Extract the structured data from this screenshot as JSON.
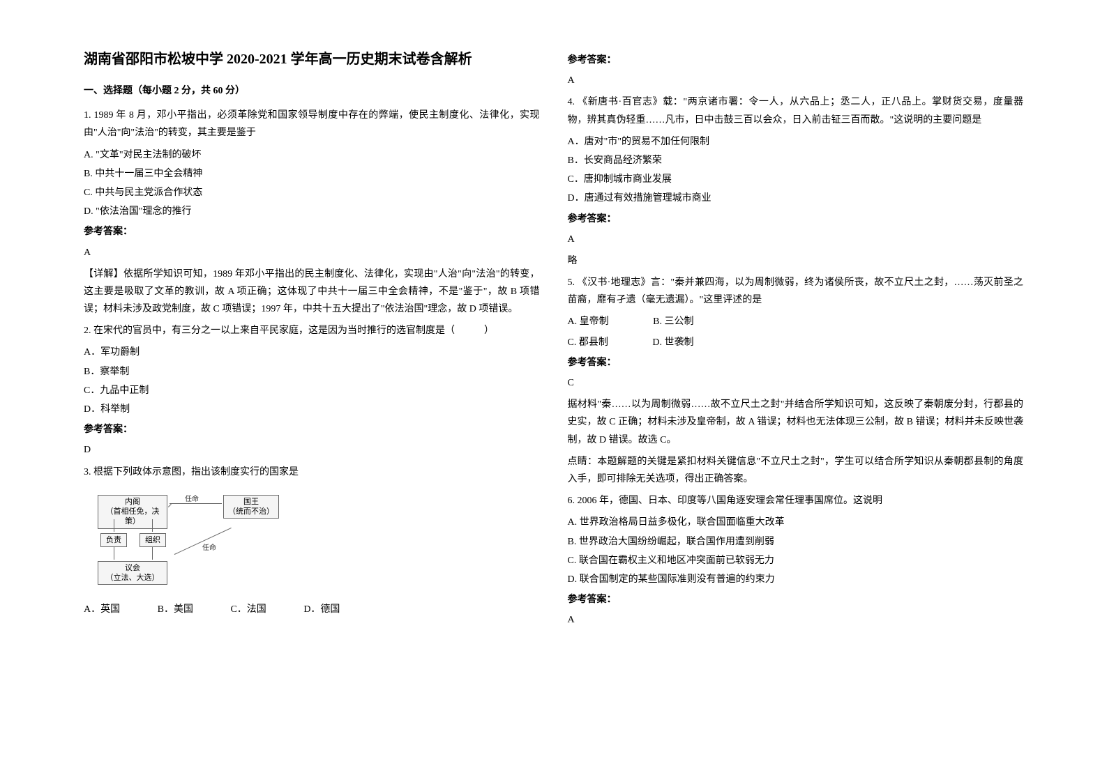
{
  "title": "湖南省邵阳市松坡中学 2020-2021 学年高一历史期末试卷含解析",
  "section1_header": "一、选择题（每小题 2 分，共 60 分）",
  "q1": {
    "stem": "1. 1989 年 8 月，邓小平指出，必须革除党和国家领导制度中存在的弊端，使民主制度化、法律化，实现由\"人治\"向\"法治\"的转变，其主要是鉴于",
    "optA": "A. \"文革\"对民主法制的破坏",
    "optB": "B. 中共十一届三中全会精神",
    "optC": "C. 中共与民主党派合作状态",
    "optD": "D. \"依法治国\"理念的推行",
    "answer_label": "参考答案：",
    "answer": "A",
    "explanation": "【详解】依据所学知识可知，1989 年邓小平指出的民主制度化、法律化，实现由\"人治\"向\"法治\"的转变，这主要是吸取了文革的教训，故 A 项正确；这体现了中共十一届三中全会精神，不是\"鉴于\"，故 B 项错误；材料未涉及政党制度，故 C 项错误；1997 年，中共十五大提出了\"依法治国\"理念，故 D 项错误。"
  },
  "q2": {
    "stem": "2. 在宋代的官员中，有三分之一以上来自平民家庭，这是因为当时推行的选官制度是（　　　）",
    "optA": "A．军功爵制",
    "optB": "B．察举制",
    "optC": "C．九品中正制",
    "optD": "D．科举制",
    "answer_label": "参考答案：",
    "answer": "D"
  },
  "q3": {
    "stem": "3. 根据下列政体示意图，指出该制度实行的国家是",
    "diagram": {
      "box_cabinet": "内阁\n（首相任免，决策）",
      "box_king": "国王\n（统而不治）",
      "box_responsible": "负责",
      "box_organize": "组织",
      "box_parliament": "议会\n（立法、大选）",
      "label_appoint1": "任命",
      "label_appoint2": "任命"
    },
    "optA": "A．英国",
    "optB": "B．美国",
    "optC": "C．法国",
    "optD": "D．德国",
    "answer_label": "参考答案：",
    "answer": "A"
  },
  "q4": {
    "stem": "4. 《新唐书·百官志》载：\"两京诸市署：令一人，从六品上；丞二人，正八品上。掌财货交易，度量器物，辨其真伪轻重……凡市，日中击鼓三百以会众，日入前击钲三百而散。\"这说明的主要问题是",
    "optA": "A．唐对\"市\"的贸易不加任何限制",
    "optB": "B．长安商品经济繁荣",
    "optC": "C．唐抑制城市商业发展",
    "optD": "D．唐通过有效措施管理城市商业",
    "answer_label": "参考答案：",
    "answer": "A",
    "note": "略"
  },
  "q5": {
    "stem": "5. 《汉书·地理志》言：\"秦并兼四海，以为周制微弱，终为诸侯所丧，故不立尺土之封，……荡灭前圣之苗裔，靡有孑遗（毫无遗漏）。\"这里评述的是",
    "optA": "A. 皇帝制",
    "optB": "B. 三公制",
    "optC": "C. 郡县制",
    "optD": "D. 世袭制",
    "answer_label": "参考答案：",
    "answer": "C",
    "explanation": "据材料\"秦……以为周制微弱……故不立尺土之封\"并结合所学知识可知，这反映了秦朝废分封，行郡县的史实，故 C 正确；材料未涉及皇帝制，故 A 错误；材料也无法体现三公制，故 B 错误；材料并未反映世袭制，故 D 错误。故选 C。",
    "tip": "点睛：本题解题的关键是紧扣材料关键信息\"不立尺土之封\"，学生可以结合所学知识从秦朝郡县制的角度入手，即可排除无关选项，得出正确答案。"
  },
  "q6": {
    "stem": "6. 2006 年，德国、日本、印度等八国角逐安理会常任理事国席位。这说明",
    "optA": "A. 世界政治格局日益多极化，联合国面临重大改革",
    "optB": "B. 世界政治大国纷纷崛起，联合国作用遭到削弱",
    "optC": "C. 联合国在霸权主义和地区冲突面前已软弱无力",
    "optD": "D. 联合国制定的某些国际准则没有普遍的约束力",
    "answer_label": "参考答案：",
    "answer": "A"
  }
}
